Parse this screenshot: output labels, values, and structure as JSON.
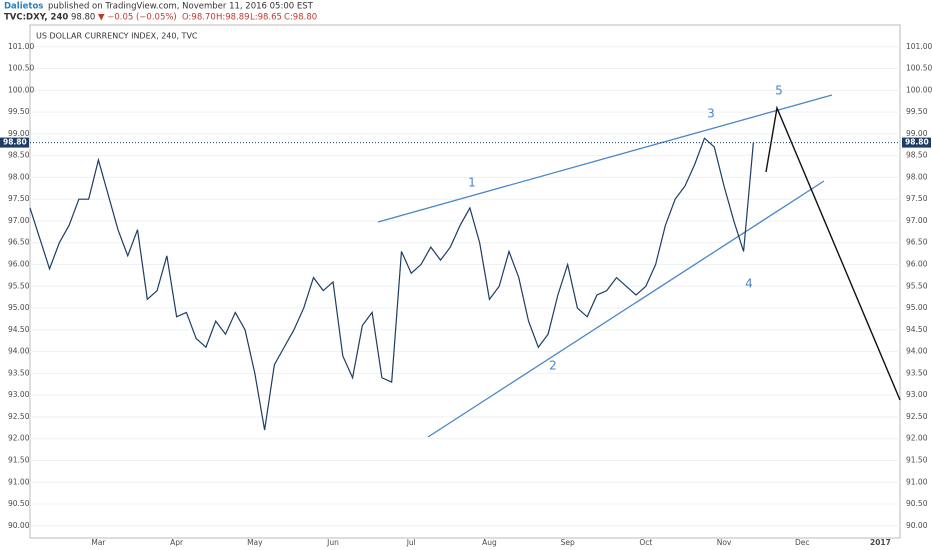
{
  "header": {
    "author": "Dalietos",
    "published": "published on TradingView.com, November 11, 2016 05:00 EST",
    "symbol": "TVC:DXY, 240",
    "last": "98.80",
    "change": "▼ −0.05 (−0.05%)",
    "ohlc": [
      "O:98.70",
      "H:98.89",
      "L:98.65",
      "C:98.80"
    ]
  },
  "chart_data": {
    "type": "line",
    "title": "US DOLLAR CURRENCY INDEX, 240, TVC",
    "color": "#1d3d63",
    "categories": [
      null,
      null,
      null,
      null,
      null,
      null,
      null,
      "Mar",
      null,
      null,
      null,
      null,
      null,
      null,
      null,
      "Apr",
      null,
      null,
      null,
      null,
      null,
      null,
      null,
      "May",
      null,
      null,
      null,
      null,
      null,
      null,
      null,
      "Jun",
      null,
      null,
      null,
      null,
      null,
      null,
      null,
      "Jul",
      null,
      null,
      null,
      null,
      null,
      null,
      null,
      "Aug",
      null,
      null,
      null,
      null,
      null,
      null,
      null,
      "Sep",
      null,
      null,
      null,
      null,
      null,
      null,
      null,
      "Oct",
      null,
      null,
      null,
      null,
      null,
      null,
      null,
      "Nov",
      null,
      null,
      null,
      null,
      null,
      null,
      null,
      "Dec",
      null,
      null,
      null,
      null,
      null,
      null,
      null,
      "2017",
      null
    ],
    "values": [
      97.3,
      96.6,
      95.9,
      96.5,
      96.9,
      97.5,
      97.5,
      98.4,
      97.6,
      96.8,
      96.2,
      96.8,
      95.2,
      95.4,
      96.2,
      94.8,
      94.9,
      94.3,
      94.1,
      94.7,
      94.4,
      94.9,
      94.5,
      93.5,
      92.2,
      93.7,
      94.1,
      94.5,
      95.0,
      95.7,
      95.4,
      95.6,
      93.9,
      93.4,
      94.6,
      94.9,
      93.4,
      93.3,
      96.3,
      95.8,
      96.0,
      96.4,
      96.1,
      96.4,
      96.9,
      97.3,
      96.5,
      95.2,
      95.5,
      96.3,
      95.7,
      94.7,
      94.1,
      94.4,
      95.3,
      96.0,
      95.0,
      94.8,
      95.3,
      95.4,
      95.7,
      95.5,
      95.3,
      95.5,
      96.0,
      96.9,
      97.5,
      97.8,
      98.3,
      98.9,
      98.7,
      97.8,
      97.0,
      96.3,
      98.8,
      null,
      null,
      null,
      null,
      null,
      null,
      null,
      null,
      null,
      null,
      null,
      null,
      null,
      null
    ],
    "ylim": [
      89.72,
      101.5
    ],
    "yticks": [
      {
        "value": 90,
        "label": "90.00"
      },
      {
        "value": 90.5,
        "label": "90.50"
      },
      {
        "value": 91,
        "label": "91.00"
      },
      {
        "value": 91.5,
        "label": "91.50"
      },
      {
        "value": 92,
        "label": "92.00"
      },
      {
        "value": 92.5,
        "label": "92.50"
      },
      {
        "value": 93,
        "label": "93.00"
      },
      {
        "value": 93.5,
        "label": "93.50"
      },
      {
        "value": 94,
        "label": "94.00"
      },
      {
        "value": 94.5,
        "label": "94.50"
      },
      {
        "value": 95,
        "label": "95.00"
      },
      {
        "value": 95.5,
        "label": "95.50"
      },
      {
        "value": 96,
        "label": "96.00"
      },
      {
        "value": 96.5,
        "label": "96.50"
      },
      {
        "value": 97,
        "label": "97.00"
      },
      {
        "value": 97.5,
        "label": "97.50"
      },
      {
        "value": 98,
        "label": "98.00"
      },
      {
        "value": 98.5,
        "label": "98.50"
      },
      {
        "value": 99,
        "label": "99.00"
      },
      {
        "value": 99.5,
        "label": "99.50"
      },
      {
        "value": 100,
        "label": "100.00"
      },
      {
        "value": 100.5,
        "label": "100.50"
      },
      {
        "value": 101,
        "label": "101.00"
      }
    ],
    "grid": true,
    "last_price": {
      "value": 98.8,
      "label": "98.80"
    },
    "annotations": [
      "1",
      "2",
      "3",
      "4",
      "5"
    ]
  }
}
